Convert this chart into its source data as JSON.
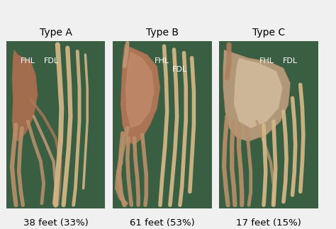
{
  "figure_bg": "#f0f0f0",
  "panel_bg": "#3a5e42",
  "panels": [
    {
      "label": "Type A",
      "footer": "38 feet (33%)",
      "fhl_label": "FHL",
      "fdl_label": "FDL"
    },
    {
      "label": "Type B",
      "footer": "61 feet (53%)",
      "fhl_label": "FHL",
      "fdl_label": "FDL"
    },
    {
      "label": "Type C",
      "footer": "17 feet (15%)",
      "fhl_label": "FHL",
      "fdl_label": "FDL"
    }
  ],
  "title_fontsize": 10,
  "footer_fontsize": 9.5,
  "label_fontsize": 7.5,
  "tendon_fhl": "#b8906a",
  "tendon_fdl": "#d4b888",
  "tendon_body": "#c09870",
  "tendon_body2": "#b08060"
}
